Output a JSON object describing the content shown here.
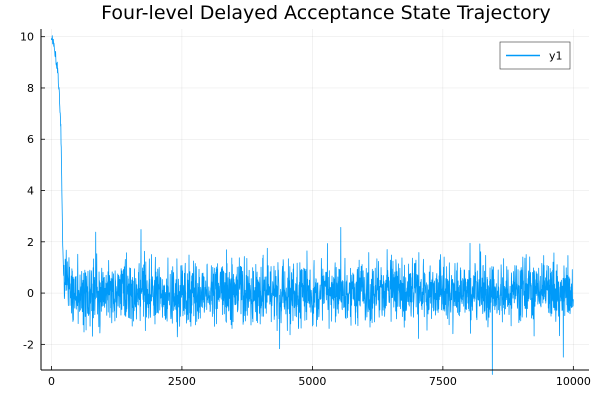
{
  "chart_data": {
    "type": "line",
    "title": "Four-level Delayed Acceptance State Trajectory",
    "xlabel": "",
    "ylabel": "",
    "xlim": [
      -200,
      10300
    ],
    "ylim": [
      -3.0,
      10.3
    ],
    "xticks": [
      0,
      2500,
      5000,
      7500,
      10000
    ],
    "xtick_labels": [
      "0",
      "2500",
      "5000",
      "7500",
      "10000"
    ],
    "yticks": [
      -2,
      0,
      2,
      4,
      6,
      8,
      10
    ],
    "ytick_labels": [
      "-2",
      "0",
      "2",
      "4",
      "6",
      "8",
      "10"
    ],
    "grid": true,
    "legend_position": "top-right",
    "series": [
      {
        "name": "y1",
        "color": "#009af9",
        "n_points": 10000,
        "x": [
          0,
          20,
          40,
          60,
          80,
          100,
          120,
          140,
          160,
          180,
          200,
          220,
          240,
          260,
          280,
          300,
          320,
          350,
          400,
          500,
          700,
          900,
          1100,
          1300,
          1500,
          1800,
          2100,
          2400,
          2700,
          3000,
          3400,
          3800,
          4200,
          4600,
          5000,
          5500,
          6000,
          6500,
          7000,
          7500,
          8000,
          8500,
          9000,
          9500,
          10000
        ],
        "y": [
          10.0,
          9.9,
          9.7,
          9.5,
          9.2,
          8.9,
          8.7,
          8.0,
          7.2,
          6.5,
          4.0,
          1.5,
          0.5,
          0.3,
          1.0,
          0.2,
          0.5,
          0.1,
          0.0,
          0.1,
          0.0,
          -0.1,
          0.1,
          0.0,
          0.0,
          0.1,
          0.0,
          0.0,
          -0.1,
          0.0,
          0.1,
          0.0,
          0.0,
          -0.1,
          0.0,
          0.1,
          0.0,
          0.0,
          0.1,
          0.0,
          0.0,
          -0.1,
          0.0,
          0.1,
          0.0
        ]
      }
    ]
  }
}
